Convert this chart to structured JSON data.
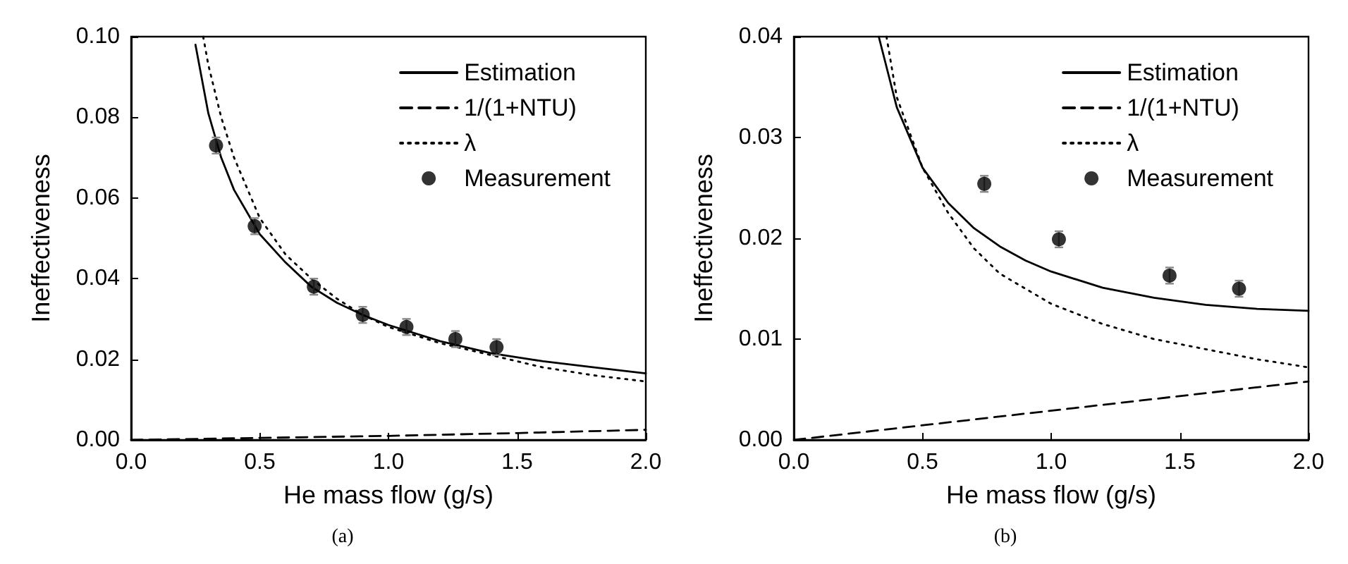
{
  "chart_data": [
    {
      "type": "line",
      "xlabel": "He mass flow (g/s)",
      "ylabel": "Ineffectiveness",
      "annotations": [
        "(a)"
      ],
      "xlim": [
        0,
        2
      ],
      "ylim": [
        0,
        0.1
      ],
      "xticks": [
        {
          "value": 0,
          "label": "0.0"
        },
        {
          "value": 0.5,
          "label": "0.5"
        },
        {
          "value": 1,
          "label": "1.0"
        },
        {
          "value": 1.5,
          "label": "1.5"
        },
        {
          "value": 2,
          "label": "2.0"
        }
      ],
      "yticks": [
        {
          "value": 0,
          "label": "0.00"
        },
        {
          "value": 0.02,
          "label": "0.02"
        },
        {
          "value": 0.04,
          "label": "0.04"
        },
        {
          "value": 0.06,
          "label": "0.06"
        },
        {
          "value": 0.08,
          "label": "0.08"
        },
        {
          "value": 0.1,
          "label": "0.10"
        }
      ],
      "grid": false,
      "legend": "top right",
      "series": [
        {
          "name": "Estimation",
          "color": "#000000",
          "line_style": "solid",
          "marker": "none",
          "x": [
            0.25,
            0.3,
            0.35,
            0.4,
            0.5,
            0.6,
            0.7,
            0.8,
            0.9,
            1.0,
            1.2,
            1.4,
            1.6,
            1.8,
            2.0
          ],
          "values": [
            0.098,
            0.081,
            0.07,
            0.062,
            0.051,
            0.044,
            0.038,
            0.034,
            0.031,
            0.0285,
            0.0245,
            0.0215,
            0.0195,
            0.018,
            0.0165
          ]
        },
        {
          "name": "1/(1+NTU)",
          "color": "#000000",
          "line_style": "dashed",
          "marker": "none",
          "x": [
            0,
            0.5,
            1.0,
            1.5,
            2.0
          ],
          "values": [
            0,
            0.0005,
            0.001,
            0.0017,
            0.0025
          ]
        },
        {
          "name": "λ",
          "color": "#000000",
          "line_style": "dotted",
          "marker": "none",
          "x": [
            0.28,
            0.3,
            0.35,
            0.4,
            0.5,
            0.6,
            0.7,
            0.8,
            0.9,
            1.0,
            1.2,
            1.4,
            1.6,
            1.8,
            2.0
          ],
          "values": [
            0.1,
            0.093,
            0.08,
            0.07,
            0.055,
            0.046,
            0.04,
            0.035,
            0.031,
            0.028,
            0.024,
            0.021,
            0.018,
            0.016,
            0.0145
          ]
        },
        {
          "name": "Measurement",
          "type": "scatter",
          "color": "#000000",
          "marker": "circle",
          "x": [
            0.33,
            0.48,
            0.71,
            0.9,
            1.07,
            1.26,
            1.42
          ],
          "values": [
            0.073,
            0.053,
            0.038,
            0.031,
            0.028,
            0.025,
            0.023
          ],
          "errors": [
            0.002,
            0.002,
            0.002,
            0.002,
            0.002,
            0.002,
            0.002
          ]
        }
      ]
    },
    {
      "type": "line",
      "xlabel": "He mass flow (g/s)",
      "ylabel": "Ineffectiveness",
      "annotations": [
        "(b)"
      ],
      "xlim": [
        0,
        2
      ],
      "ylim": [
        0,
        0.04
      ],
      "xticks": [
        {
          "value": 0,
          "label": "0.0"
        },
        {
          "value": 0.5,
          "label": "0.5"
        },
        {
          "value": 1,
          "label": "1.0"
        },
        {
          "value": 1.5,
          "label": "1.5"
        },
        {
          "value": 2,
          "label": "2.0"
        }
      ],
      "yticks": [
        {
          "value": 0,
          "label": "0.00"
        },
        {
          "value": 0.01,
          "label": "0.01"
        },
        {
          "value": 0.02,
          "label": "0.02"
        },
        {
          "value": 0.03,
          "label": "0.03"
        },
        {
          "value": 0.04,
          "label": "0.04"
        }
      ],
      "grid": false,
      "legend": "top right",
      "series": [
        {
          "name": "Estimation",
          "color": "#000000",
          "line_style": "solid",
          "marker": "none",
          "x": [
            0.33,
            0.4,
            0.5,
            0.6,
            0.7,
            0.8,
            0.9,
            1.0,
            1.2,
            1.4,
            1.6,
            1.8,
            2.0
          ],
          "values": [
            0.04,
            0.033,
            0.027,
            0.0235,
            0.021,
            0.0192,
            0.0178,
            0.0167,
            0.0151,
            0.0141,
            0.0134,
            0.013,
            0.0128
          ]
        },
        {
          "name": "1/(1+NTU)",
          "color": "#000000",
          "line_style": "dashed",
          "marker": "none",
          "x": [
            0,
            2.0
          ],
          "values": [
            0,
            0.0058
          ]
        },
        {
          "name": "λ",
          "color": "#000000",
          "line_style": "dotted",
          "marker": "none",
          "x": [
            0.36,
            0.4,
            0.5,
            0.6,
            0.7,
            0.8,
            1.0,
            1.2,
            1.4,
            1.6,
            1.8,
            2.0
          ],
          "values": [
            0.04,
            0.034,
            0.027,
            0.0225,
            0.019,
            0.0165,
            0.0135,
            0.0115,
            0.01,
            0.009,
            0.008,
            0.0072
          ]
        },
        {
          "name": "Measurement",
          "type": "scatter",
          "color": "#000000",
          "marker": "circle",
          "x": [
            0.74,
            1.03,
            1.46,
            1.73
          ],
          "values": [
            0.0254,
            0.0199,
            0.0163,
            0.015
          ],
          "errors": [
            0.0008,
            0.0008,
            0.0008,
            0.0008
          ]
        }
      ]
    }
  ]
}
